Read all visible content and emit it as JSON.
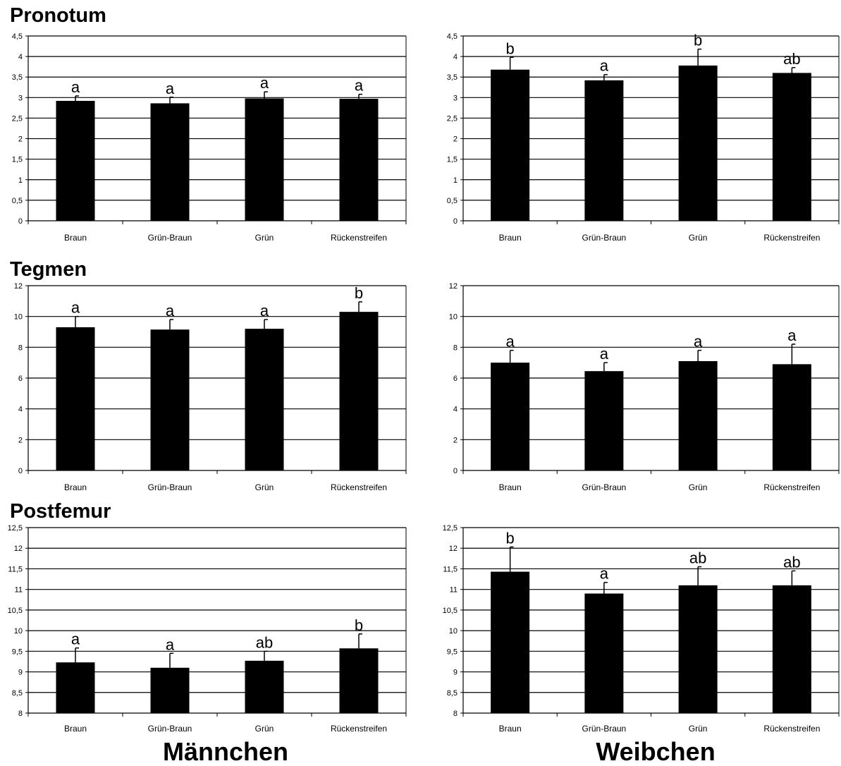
{
  "rows": [
    {
      "title": "Pronotum"
    },
    {
      "title": "Tegmen"
    },
    {
      "title": "Postfemur"
    }
  ],
  "groups": {
    "left": "Männchen",
    "right": "Weibchen"
  },
  "colors": {
    "bar": "#000000",
    "grid": "#000000",
    "background": "#ffffff"
  },
  "chart_data": [
    {
      "type": "bar",
      "title": "Pronotum",
      "group": "Männchen",
      "categories": [
        "Braun",
        "Grün-Braun",
        "Grün",
        "Rückenstreifen"
      ],
      "values": [
        2.92,
        2.86,
        2.98,
        2.97
      ],
      "errors": [
        0.12,
        0.15,
        0.16,
        0.11
      ],
      "labels": [
        "a",
        "a",
        "a",
        "a"
      ],
      "ylim": [
        0,
        4.5
      ],
      "ticks": [
        "0",
        "0,5",
        "1",
        "1,5",
        "2",
        "2,5",
        "3",
        "3,5",
        "4",
        "4,5"
      ],
      "grid": true
    },
    {
      "type": "bar",
      "title": "Pronotum",
      "group": "Weibchen",
      "categories": [
        "Braun",
        "Grün-Braun",
        "Grün",
        "Rückenstreifen"
      ],
      "values": [
        3.68,
        3.42,
        3.78,
        3.6
      ],
      "errors": [
        0.3,
        0.14,
        0.4,
        0.13
      ],
      "labels": [
        "b",
        "a",
        "b",
        "ab"
      ],
      "ylim": [
        0,
        4.5
      ],
      "ticks": [
        "0",
        "0,5",
        "1",
        "1,5",
        "2",
        "2,5",
        "3",
        "3,5",
        "4",
        "4,5"
      ],
      "grid": true
    },
    {
      "type": "bar",
      "title": "Tegmen",
      "group": "Männchen",
      "categories": [
        "Braun",
        "Grün-Braun",
        "Grün",
        "Rückenstreifen"
      ],
      "values": [
        9.3,
        9.15,
        9.2,
        10.3
      ],
      "errors": [
        0.7,
        0.65,
        0.6,
        0.65
      ],
      "labels": [
        "a",
        "a",
        "a",
        "b"
      ],
      "ylim": [
        0,
        12
      ],
      "ticks": [
        "0",
        "2",
        "4",
        "6",
        "8",
        "10",
        "12"
      ],
      "grid": true
    },
    {
      "type": "bar",
      "title": "Tegmen",
      "group": "Weibchen",
      "categories": [
        "Braun",
        "Grün-Braun",
        "Grün",
        "Rückenstreifen"
      ],
      "values": [
        7.0,
        6.45,
        7.1,
        6.9
      ],
      "errors": [
        0.8,
        0.55,
        0.7,
        1.3
      ],
      "labels": [
        "a",
        "a",
        "a",
        "a"
      ],
      "ylim": [
        0,
        12
      ],
      "ticks": [
        "0",
        "2",
        "4",
        "6",
        "8",
        "10",
        "12"
      ],
      "grid": true
    },
    {
      "type": "bar",
      "title": "Postfemur",
      "group": "Männchen",
      "categories": [
        "Braun",
        "Grün-Braun",
        "Grün",
        "Rückenstreifen"
      ],
      "values": [
        9.23,
        9.1,
        9.27,
        9.57
      ],
      "errors": [
        0.35,
        0.35,
        0.23,
        0.35
      ],
      "labels": [
        "a",
        "a",
        "ab",
        "b"
      ],
      "ylim": [
        8,
        12.5
      ],
      "ticks": [
        "8",
        "8,5",
        "9",
        "9,5",
        "10",
        "10,5",
        "11",
        "11,5",
        "12",
        "12,5"
      ],
      "grid": true
    },
    {
      "type": "bar",
      "title": "Postfemur",
      "group": "Weibchen",
      "categories": [
        "Braun",
        "Grün-Braun",
        "Grün",
        "Rückenstreifen"
      ],
      "values": [
        11.43,
        10.9,
        11.1,
        11.1
      ],
      "errors": [
        0.6,
        0.27,
        0.45,
        0.35
      ],
      "labels": [
        "b",
        "a",
        "ab",
        "ab"
      ],
      "ylim": [
        8,
        12.5
      ],
      "ticks": [
        "8",
        "8,5",
        "9",
        "9,5",
        "10",
        "10,5",
        "11",
        "11,5",
        "12",
        "12,5"
      ],
      "grid": true
    }
  ]
}
